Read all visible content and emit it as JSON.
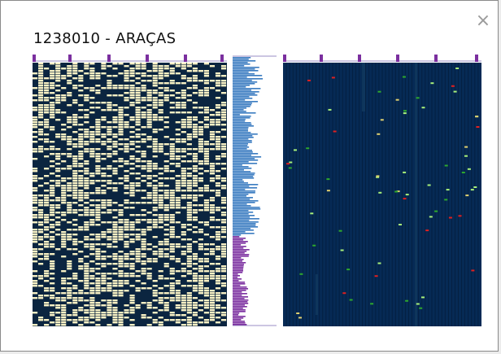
{
  "window": {
    "title": "1238010 - ARAÇAS",
    "close_glyph": "×"
  },
  "icons": {
    "close": "close-icon"
  },
  "colors": {
    "presence_cell": "#f7f0c4",
    "absence_cell": "#0b2540",
    "gap_cell": "#113a5f",
    "quality_background": "#062a55",
    "frame_tick": "#7b2f9f",
    "frame_line": "#9a8cc4",
    "profile_upper": "#3a7bc0",
    "profile_lower": "#7b2f9f",
    "flag_light_green": "#a8f07a",
    "flag_green": "#2ea82e",
    "flag_yellow": "#e0d070",
    "flag_red": "#e02020"
  }
}
